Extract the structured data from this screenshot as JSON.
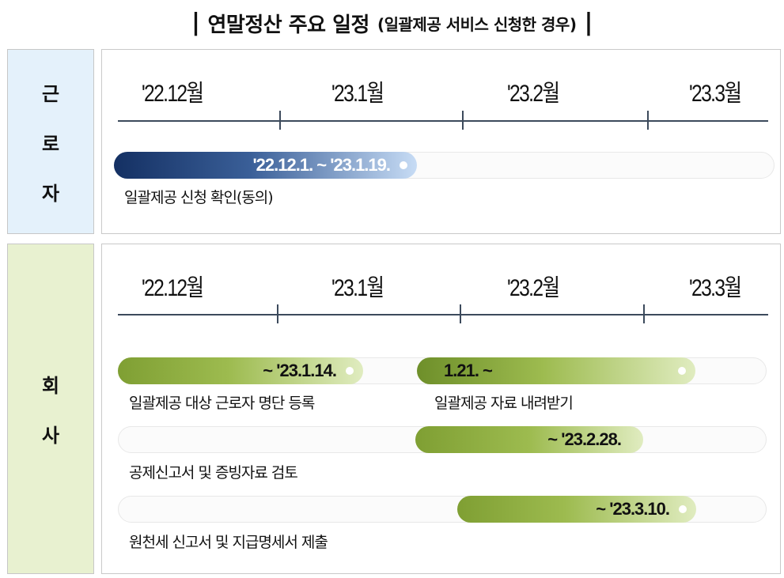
{
  "title": {
    "bar_left": "|",
    "main": "연말정산 주요 일정",
    "sub": "(일괄제공 서비스 신청한 경우)",
    "bar_right": "|"
  },
  "colors": {
    "worker_label_bg": "#e4f1fb",
    "company_label_bg": "#e8f1d0",
    "axis": "#3c4a5c",
    "navy_bar_start": "#143063",
    "navy_bar_end": "#c7dcf5",
    "green_bar_dark": "#6e8f2a",
    "green_bar_light": "#e0ecc0"
  },
  "worker": {
    "label_chars": [
      "근",
      "로",
      "자"
    ],
    "months": [
      "'22.12월",
      "'23.1월",
      "'23.2월",
      "'23.3월"
    ],
    "tasks": [
      {
        "date": "'22.12.1. ~ '23.1.19.",
        "label": "일괄제공 신청 확인(동의)"
      }
    ]
  },
  "company": {
    "label_chars": [
      "회",
      "사"
    ],
    "months": [
      "'22.12월",
      "'23.1월",
      "'23.2월",
      "'23.3월"
    ],
    "tasks": [
      {
        "date": "~ '23.1.14.",
        "label": "일괄제공 대상 근로자 명단 등록"
      },
      {
        "date": "1.21. ~",
        "label": "일괄제공 자료 내려받기"
      },
      {
        "date": "~ '23.2.28.",
        "label": "공제신고서 및 증빙자료 검토"
      },
      {
        "date": "~ '23.3.10.",
        "label": "원천세 신고서 및 지급명세서 제출"
      }
    ]
  }
}
